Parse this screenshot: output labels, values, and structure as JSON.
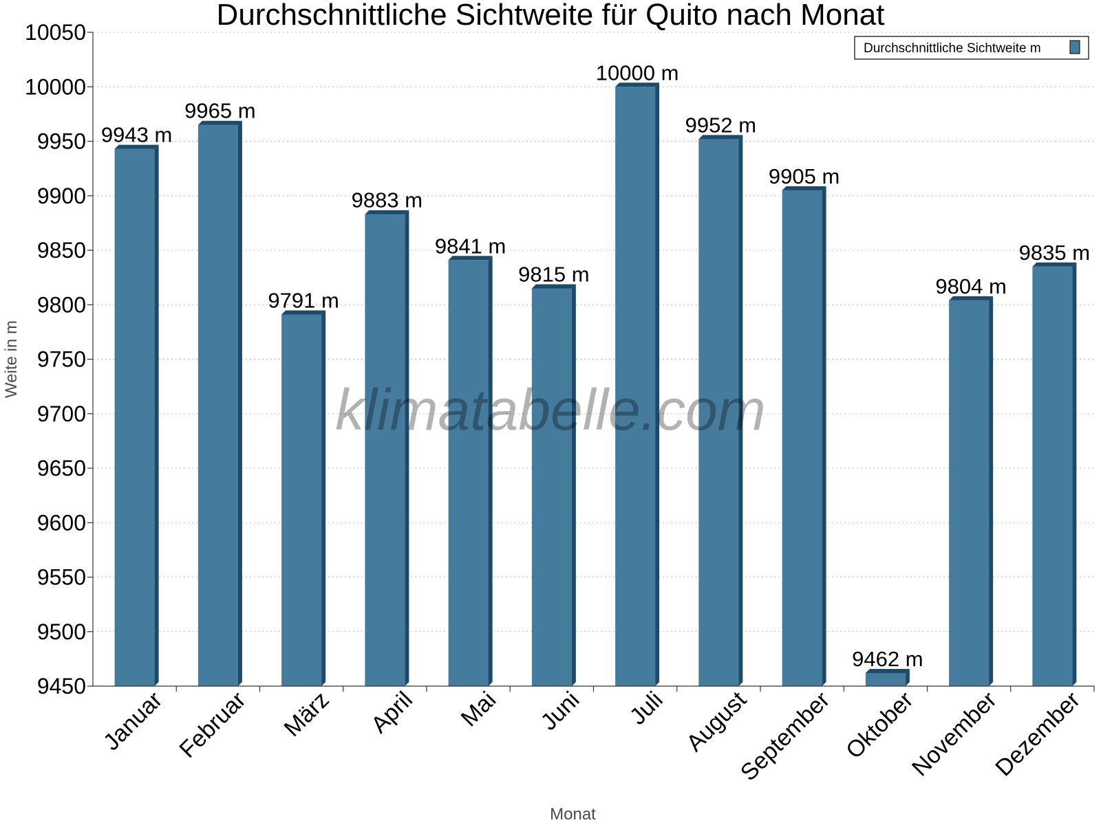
{
  "chart_data": {
    "type": "bar",
    "title": "Durchschnittliche Sichtweite für Quito nach Monat",
    "xlabel": "Monat",
    "ylabel": "Weite in m",
    "ylim": [
      9450,
      10050
    ],
    "yticks": [
      9450,
      9500,
      9550,
      9600,
      9650,
      9700,
      9750,
      9800,
      9850,
      9900,
      9950,
      10000,
      10050
    ],
    "categories": [
      "Januar",
      "Februar",
      "März",
      "April",
      "Mai",
      "Juni",
      "Juli",
      "August",
      "September",
      "Oktober",
      "November",
      "Dezember"
    ],
    "series": [
      {
        "name": "Durchschnittliche Sichtweite m",
        "values": [
          9943,
          9965,
          9791,
          9883,
          9841,
          9815,
          10000,
          9952,
          9905,
          9462,
          9804,
          9835
        ],
        "labels": [
          "9943 m",
          "9965 m",
          "9791 m",
          "9883 m",
          "9841 m",
          "9815 m",
          "10000 m",
          "9952 m",
          "9905 m",
          "9462 m",
          "9804 m",
          "9835 m"
        ]
      }
    ],
    "grid": true,
    "legend_position": "top-right",
    "colors": {
      "bar_front": "#457b9d",
      "bar_side": "#1b4a6b",
      "bar_top": "#1b4a6b"
    },
    "watermark": "klimatabelle.com"
  }
}
